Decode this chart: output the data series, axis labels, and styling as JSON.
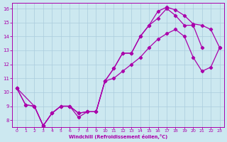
{
  "xlabel": "Windchill (Refroidissement éolien,°C)",
  "xlim": [
    -0.5,
    23.5
  ],
  "ylim": [
    7.5,
    16.4
  ],
  "xticks": [
    0,
    1,
    2,
    3,
    4,
    5,
    6,
    7,
    8,
    9,
    10,
    11,
    12,
    13,
    14,
    15,
    16,
    17,
    18,
    19,
    20,
    21,
    22,
    23
  ],
  "yticks": [
    8,
    9,
    10,
    11,
    12,
    13,
    14,
    15,
    16
  ],
  "line_color": "#aa00aa",
  "bg_color": "#cce8f0",
  "grid_color": "#aaccdd",
  "series_A_x": [
    0,
    1,
    2,
    3,
    4,
    5,
    6,
    7,
    8,
    9,
    10,
    11,
    12,
    13,
    14,
    15,
    16,
    17,
    18,
    19,
    20,
    21
  ],
  "series_A_y": [
    10.3,
    9.1,
    9.0,
    7.6,
    8.5,
    9.0,
    9.0,
    8.5,
    8.6,
    8.6,
    10.8,
    11.7,
    12.8,
    12.8,
    14.0,
    14.8,
    15.3,
    16.0,
    15.5,
    14.8,
    14.8,
    13.2
  ],
  "series_B_x": [
    0,
    1,
    2,
    3,
    4,
    5,
    6,
    7,
    8,
    9,
    10,
    11,
    12,
    13,
    14,
    15,
    16,
    17,
    18,
    19,
    20,
    21,
    22,
    23
  ],
  "series_B_y": [
    10.3,
    9.1,
    9.0,
    7.6,
    8.5,
    9.0,
    9.0,
    8.5,
    8.6,
    8.6,
    10.8,
    11.7,
    12.8,
    12.8,
    14.0,
    14.8,
    15.8,
    16.1,
    15.9,
    15.5,
    14.9,
    14.8,
    14.5,
    13.2
  ],
  "series_C_x": [
    0,
    2,
    3,
    4,
    5,
    6,
    7,
    8,
    9,
    10,
    11,
    12,
    13,
    14,
    15,
    16,
    17,
    18,
    19,
    20,
    21,
    22,
    23
  ],
  "series_C_y": [
    10.3,
    9.0,
    7.6,
    8.5,
    9.0,
    9.0,
    8.2,
    8.6,
    8.6,
    10.8,
    11.0,
    11.5,
    12.0,
    12.5,
    13.2,
    13.8,
    14.2,
    14.5,
    14.0,
    12.5,
    11.5,
    11.8,
    13.2
  ]
}
